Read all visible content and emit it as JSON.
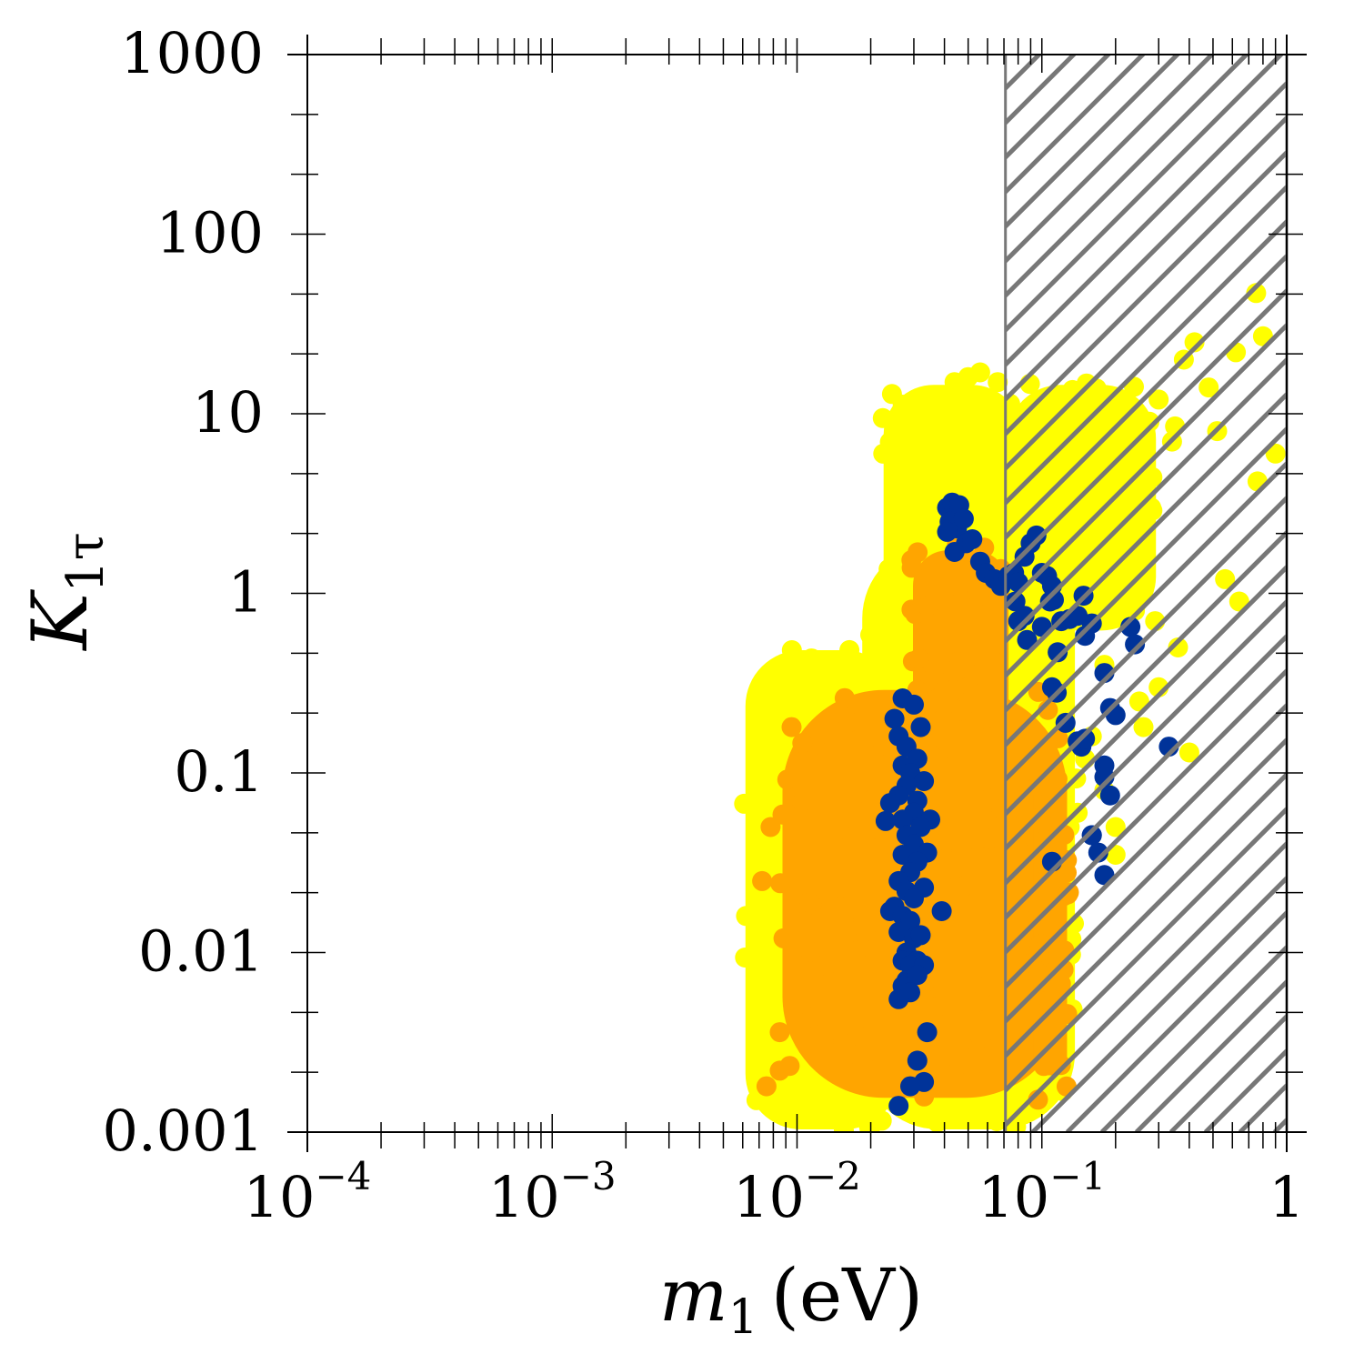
{
  "chart_data": {
    "type": "scatter",
    "title": "",
    "xlabel": "m",
    "xlabel_subscript": "1",
    "xlabel_unit": "(eV)",
    "ylabel": "K",
    "ylabel_subscript": "1τ",
    "xscale": "log",
    "yscale": "log",
    "xlim": [
      0.0001,
      1
    ],
    "ylim": [
      0.001,
      1000
    ],
    "grid": false,
    "legend": "none",
    "x_ticks": [
      {
        "value": 0.0001,
        "base": "10",
        "exp": "−4"
      },
      {
        "value": 0.001,
        "base": "10",
        "exp": "−3"
      },
      {
        "value": 0.01,
        "base": "10",
        "exp": "−2"
      },
      {
        "value": 0.1,
        "base": "10",
        "exp": "−1"
      },
      {
        "value": 1,
        "base": "1",
        "exp": ""
      }
    ],
    "y_ticks": [
      {
        "value": 0.001,
        "label": "0.001"
      },
      {
        "value": 0.01,
        "label": "0.01"
      },
      {
        "value": 0.1,
        "label": "0.1"
      },
      {
        "value": 1,
        "label": "1"
      },
      {
        "value": 10,
        "label": "10"
      },
      {
        "value": 100,
        "label": "100"
      },
      {
        "value": 1000,
        "label": "1000"
      }
    ],
    "excluded_region": {
      "x_min": 0.071,
      "x_max": 1,
      "pattern": "diagonal hatch",
      "color": "#777777"
    },
    "series": [
      {
        "color": "#FFFF00",
        "regions": [
          {
            "x_range": [
              0.006,
              0.027
            ],
            "y_range": [
              0.001,
              0.5
            ]
          },
          {
            "x_range": [
              0.018,
              0.14
            ],
            "y_range": [
              0.001,
              2.0
            ]
          },
          {
            "x_range": [
              0.022,
              0.085
            ],
            "y_range": [
              0.5,
              15
            ]
          },
          {
            "x_range": [
              0.07,
              0.3
            ],
            "y_range": [
              0.6,
              15
            ]
          }
        ],
        "points": [
          [
            0.75,
            47
          ],
          [
            0.8,
            27
          ],
          [
            0.62,
            22
          ],
          [
            0.52,
            8
          ],
          [
            0.9,
            6
          ],
          [
            0.76,
            4.2
          ],
          [
            0.38,
            20
          ],
          [
            0.42,
            25
          ],
          [
            0.48,
            14
          ],
          [
            0.3,
            12
          ],
          [
            0.34,
            7
          ],
          [
            0.28,
            3
          ],
          [
            0.56,
            1.2
          ],
          [
            0.64,
            0.9
          ],
          [
            0.22,
            1.0
          ],
          [
            0.18,
            0.4
          ],
          [
            0.25,
            0.25
          ],
          [
            0.3,
            0.3
          ],
          [
            0.36,
            0.5
          ],
          [
            0.4,
            0.13
          ],
          [
            0.15,
            0.12
          ],
          [
            0.14,
            0.06
          ],
          [
            0.12,
            0.045
          ],
          [
            0.2,
            0.05
          ],
          [
            0.16,
            0.16
          ],
          [
            0.26,
            0.18
          ],
          [
            0.05,
            16
          ],
          [
            0.056,
            17
          ],
          [
            0.044,
            15
          ],
          [
            0.066,
            15
          ],
          [
            0.24,
            2.2
          ],
          [
            0.35,
            8.5
          ],
          [
            0.29,
            0.7
          ],
          [
            0.24,
            0.8
          ],
          [
            0.2,
            0.035
          ],
          [
            0.13,
            0.05
          ],
          [
            0.18,
            0.08
          ]
        ]
      },
      {
        "color": "#FFA500",
        "regions": [
          {
            "x_range": [
              0.0085,
              0.13
            ],
            "y_range": [
              0.0015,
              0.3
            ]
          },
          {
            "x_range": [
              0.029,
              0.075
            ],
            "y_range": [
              0.15,
              1.8
            ]
          },
          {
            "x_range": [
              0.09,
              0.13
            ],
            "y_range": [
              0.002,
              0.1
            ]
          }
        ],
        "points": [
          [
            0.0075,
            0.0018
          ],
          [
            0.0085,
            0.0022
          ],
          [
            0.0085,
            0.0036
          ],
          [
            0.0088,
            0.012
          ],
          [
            0.0072,
            0.025
          ],
          [
            0.0078,
            0.05
          ],
          [
            0.0095,
            0.18
          ],
          [
            0.11,
            0.08
          ],
          [
            0.115,
            0.04
          ],
          [
            0.105,
            0.03
          ],
          [
            0.045,
            1.9
          ]
        ]
      },
      {
        "color": "#003399",
        "points": [
          [
            0.027,
            0.26
          ],
          [
            0.03,
            0.24
          ],
          [
            0.025,
            0.2
          ],
          [
            0.032,
            0.18
          ],
          [
            0.026,
            0.16
          ],
          [
            0.028,
            0.14
          ],
          [
            0.031,
            0.12
          ],
          [
            0.027,
            0.11
          ],
          [
            0.029,
            0.1
          ],
          [
            0.033,
            0.09
          ],
          [
            0.028,
            0.085
          ],
          [
            0.026,
            0.075
          ],
          [
            0.031,
            0.07
          ],
          [
            0.024,
            0.068
          ],
          [
            0.03,
            0.06
          ],
          [
            0.027,
            0.055
          ],
          [
            0.035,
            0.055
          ],
          [
            0.023,
            0.054
          ],
          [
            0.032,
            0.05
          ],
          [
            0.028,
            0.045
          ],
          [
            0.03,
            0.04
          ],
          [
            0.034,
            0.036
          ],
          [
            0.027,
            0.035
          ],
          [
            0.031,
            0.032
          ],
          [
            0.029,
            0.028
          ],
          [
            0.026,
            0.025
          ],
          [
            0.033,
            0.023
          ],
          [
            0.028,
            0.022
          ],
          [
            0.03,
            0.02
          ],
          [
            0.024,
            0.017
          ],
          [
            0.025,
            0.018
          ],
          [
            0.027,
            0.016
          ],
          [
            0.039,
            0.017
          ],
          [
            0.029,
            0.015
          ],
          [
            0.026,
            0.013
          ],
          [
            0.03,
            0.012
          ],
          [
            0.032,
            0.0125
          ],
          [
            0.028,
            0.01
          ],
          [
            0.027,
            0.009
          ],
          [
            0.031,
            0.009
          ],
          [
            0.029,
            0.0085
          ],
          [
            0.033,
            0.0085
          ],
          [
            0.028,
            0.007
          ],
          [
            0.031,
            0.0075
          ],
          [
            0.027,
            0.0065
          ],
          [
            0.029,
            0.006
          ],
          [
            0.026,
            0.0055
          ],
          [
            0.034,
            0.0036
          ],
          [
            0.031,
            0.0025
          ],
          [
            0.033,
            0.0019
          ],
          [
            0.029,
            0.0018
          ],
          [
            0.026,
            0.0014
          ],
          [
            0.041,
            3.0
          ],
          [
            0.043,
            3.2
          ],
          [
            0.046,
            3.1
          ],
          [
            0.042,
            2.5
          ],
          [
            0.045,
            2.3
          ],
          [
            0.048,
            2.6
          ],
          [
            0.041,
            2.2
          ],
          [
            0.049,
            1.9
          ],
          [
            0.052,
            2.0
          ],
          [
            0.044,
            1.7
          ],
          [
            0.056,
            1.5
          ],
          [
            0.059,
            1.3
          ],
          [
            0.064,
            1.2
          ],
          [
            0.068,
            1.1
          ],
          [
            0.073,
            1.25
          ],
          [
            0.077,
            1.3
          ],
          [
            0.08,
            1.15
          ],
          [
            0.085,
            1.6
          ],
          [
            0.09,
            1.9
          ],
          [
            0.095,
            2.1
          ],
          [
            0.078,
            0.9
          ],
          [
            0.08,
            0.7
          ],
          [
            0.085,
            0.75
          ],
          [
            0.087,
            0.55
          ],
          [
            0.1,
            1.3
          ],
          [
            0.105,
            1.25
          ],
          [
            0.11,
            1.1
          ],
          [
            0.108,
            0.9
          ],
          [
            0.112,
            0.92
          ],
          [
            0.1,
            0.65
          ],
          [
            0.12,
            0.7
          ],
          [
            0.13,
            0.72
          ],
          [
            0.14,
            0.75
          ],
          [
            0.15,
            0.58
          ],
          [
            0.16,
            0.68
          ],
          [
            0.148,
            0.97
          ],
          [
            0.116,
            0.47
          ],
          [
            0.11,
            0.3
          ],
          [
            0.115,
            0.28
          ],
          [
            0.125,
            0.19
          ],
          [
            0.14,
            0.15
          ],
          [
            0.145,
            0.14
          ],
          [
            0.15,
            0.155
          ],
          [
            0.18,
            0.36
          ],
          [
            0.19,
            0.23
          ],
          [
            0.2,
            0.21
          ],
          [
            0.18,
            0.11
          ],
          [
            0.18,
            0.095
          ],
          [
            0.19,
            0.075
          ],
          [
            0.16,
            0.045
          ],
          [
            0.17,
            0.036
          ],
          [
            0.18,
            0.027
          ],
          [
            0.11,
            0.032
          ],
          [
            0.23,
            0.65
          ],
          [
            0.24,
            0.52
          ],
          [
            0.33,
            0.14
          ],
          [
            0.16,
            0.045
          ]
        ]
      }
    ]
  }
}
